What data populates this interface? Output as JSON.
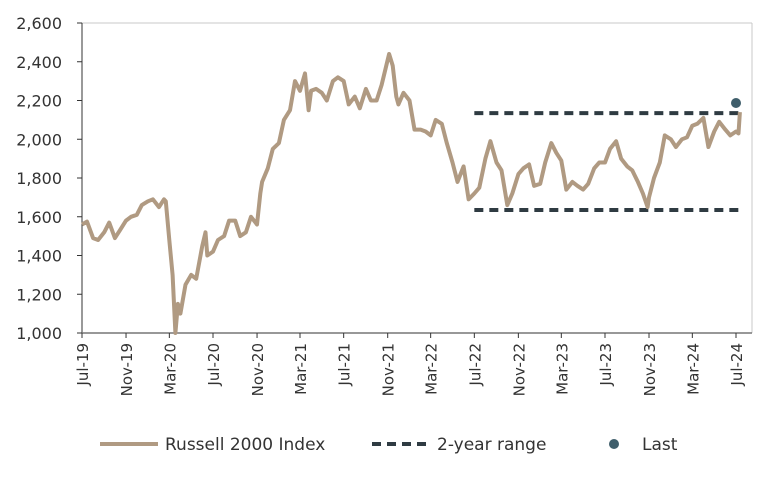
{
  "chart_data": {
    "type": "line",
    "title": "",
    "xlabel": "",
    "ylabel": "",
    "ylim": [
      1000,
      2600
    ],
    "xlim": [
      "2019-07-01",
      "2024-07-01"
    ],
    "yticks": [
      "1,000",
      "1,200",
      "1,400",
      "1,600",
      "1,800",
      "2,000",
      "2,200",
      "2,400",
      "2,600"
    ],
    "ytick_values": [
      1000,
      1200,
      1400,
      1600,
      1800,
      2000,
      2200,
      2400,
      2600
    ],
    "xticks": [
      "Jul-19",
      "Nov-19",
      "Mar-20",
      "Jul-20",
      "Nov-20",
      "Mar-21",
      "Jul-21",
      "Nov-21",
      "Mar-22",
      "Jul-22",
      "Nov-22",
      "Mar-23",
      "Jul-23",
      "Nov-23",
      "Mar-24",
      "Jul-24"
    ],
    "xtick_dates": [
      "2019-07-01",
      "2019-11-01",
      "2020-03-01",
      "2020-07-01",
      "2020-11-01",
      "2021-03-01",
      "2021-07-01",
      "2021-11-01",
      "2022-03-01",
      "2022-07-01",
      "2022-11-01",
      "2023-03-01",
      "2023-07-01",
      "2023-11-01",
      "2024-03-01",
      "2024-07-01"
    ],
    "grid": false,
    "legend_position": "bottom",
    "series": [
      {
        "name": "Russell 2000 Index",
        "color": "#b09a82",
        "points": [
          [
            "2019-07-01",
            1560
          ],
          [
            "2019-07-15",
            1575
          ],
          [
            "2019-08-01",
            1490
          ],
          [
            "2019-08-15",
            1480
          ],
          [
            "2019-09-01",
            1520
          ],
          [
            "2019-09-15",
            1570
          ],
          [
            "2019-10-01",
            1490
          ],
          [
            "2019-10-15",
            1530
          ],
          [
            "2019-11-01",
            1580
          ],
          [
            "2019-11-15",
            1600
          ],
          [
            "2019-12-01",
            1610
          ],
          [
            "2019-12-15",
            1660
          ],
          [
            "2020-01-01",
            1680
          ],
          [
            "2020-01-15",
            1690
          ],
          [
            "2020-02-01",
            1650
          ],
          [
            "2020-02-15",
            1690
          ],
          [
            "2020-02-20",
            1680
          ],
          [
            "2020-03-01",
            1480
          ],
          [
            "2020-03-10",
            1300
          ],
          [
            "2020-03-18",
            1000
          ],
          [
            "2020-03-25",
            1150
          ],
          [
            "2020-04-01",
            1100
          ],
          [
            "2020-04-15",
            1250
          ],
          [
            "2020-05-01",
            1300
          ],
          [
            "2020-05-15",
            1280
          ],
          [
            "2020-06-01",
            1450
          ],
          [
            "2020-06-10",
            1520
          ],
          [
            "2020-06-15",
            1400
          ],
          [
            "2020-07-01",
            1420
          ],
          [
            "2020-07-15",
            1480
          ],
          [
            "2020-08-01",
            1500
          ],
          [
            "2020-08-15",
            1580
          ],
          [
            "2020-09-01",
            1580
          ],
          [
            "2020-09-15",
            1500
          ],
          [
            "2020-10-01",
            1520
          ],
          [
            "2020-10-15",
            1600
          ],
          [
            "2020-11-01",
            1560
          ],
          [
            "2020-11-10",
            1720
          ],
          [
            "2020-11-15",
            1780
          ],
          [
            "2020-12-01",
            1850
          ],
          [
            "2020-12-15",
            1950
          ],
          [
            "2021-01-01",
            1980
          ],
          [
            "2021-01-15",
            2100
          ],
          [
            "2021-02-01",
            2150
          ],
          [
            "2021-02-15",
            2300
          ],
          [
            "2021-03-01",
            2250
          ],
          [
            "2021-03-15",
            2340
          ],
          [
            "2021-03-25",
            2150
          ],
          [
            "2021-04-01",
            2250
          ],
          [
            "2021-04-15",
            2260
          ],
          [
            "2021-05-01",
            2240
          ],
          [
            "2021-05-15",
            2200
          ],
          [
            "2021-06-01",
            2300
          ],
          [
            "2021-06-15",
            2320
          ],
          [
            "2021-07-01",
            2300
          ],
          [
            "2021-07-15",
            2180
          ],
          [
            "2021-08-01",
            2220
          ],
          [
            "2021-08-15",
            2160
          ],
          [
            "2021-09-01",
            2260
          ],
          [
            "2021-09-15",
            2200
          ],
          [
            "2021-10-01",
            2200
          ],
          [
            "2021-10-15",
            2280
          ],
          [
            "2021-11-05",
            2440
          ],
          [
            "2021-11-15",
            2380
          ],
          [
            "2021-11-25",
            2220
          ],
          [
            "2021-12-01",
            2180
          ],
          [
            "2021-12-15",
            2240
          ],
          [
            "2022-01-01",
            2200
          ],
          [
            "2022-01-15",
            2050
          ],
          [
            "2022-02-01",
            2050
          ],
          [
            "2022-02-15",
            2040
          ],
          [
            "2022-03-01",
            2020
          ],
          [
            "2022-03-15",
            2100
          ],
          [
            "2022-04-01",
            2080
          ],
          [
            "2022-04-15",
            1980
          ],
          [
            "2022-05-01",
            1880
          ],
          [
            "2022-05-15",
            1780
          ],
          [
            "2022-06-01",
            1860
          ],
          [
            "2022-06-15",
            1690
          ],
          [
            "2022-07-01",
            1720
          ],
          [
            "2022-07-15",
            1750
          ],
          [
            "2022-08-01",
            1900
          ],
          [
            "2022-08-15",
            1990
          ],
          [
            "2022-09-01",
            1880
          ],
          [
            "2022-09-15",
            1840
          ],
          [
            "2022-10-01",
            1660
          ],
          [
            "2022-10-15",
            1720
          ],
          [
            "2022-11-01",
            1820
          ],
          [
            "2022-11-15",
            1850
          ],
          [
            "2022-12-01",
            1870
          ],
          [
            "2022-12-15",
            1760
          ],
          [
            "2023-01-01",
            1770
          ],
          [
            "2023-01-15",
            1880
          ],
          [
            "2023-02-01",
            1980
          ],
          [
            "2023-02-15",
            1930
          ],
          [
            "2023-03-01",
            1890
          ],
          [
            "2023-03-15",
            1740
          ],
          [
            "2023-04-01",
            1780
          ],
          [
            "2023-04-15",
            1760
          ],
          [
            "2023-05-01",
            1740
          ],
          [
            "2023-05-15",
            1770
          ],
          [
            "2023-06-01",
            1850
          ],
          [
            "2023-06-15",
            1880
          ],
          [
            "2023-07-01",
            1880
          ],
          [
            "2023-07-15",
            1950
          ],
          [
            "2023-08-01",
            1990
          ],
          [
            "2023-08-15",
            1900
          ],
          [
            "2023-09-01",
            1860
          ],
          [
            "2023-09-15",
            1840
          ],
          [
            "2023-10-01",
            1780
          ],
          [
            "2023-10-15",
            1720
          ],
          [
            "2023-10-28",
            1650
          ],
          [
            "2023-11-01",
            1700
          ],
          [
            "2023-11-15",
            1800
          ],
          [
            "2023-12-01",
            1880
          ],
          [
            "2023-12-15",
            2020
          ],
          [
            "2024-01-01",
            2000
          ],
          [
            "2024-01-15",
            1960
          ],
          [
            "2024-02-01",
            2000
          ],
          [
            "2024-02-15",
            2010
          ],
          [
            "2024-03-01",
            2070
          ],
          [
            "2024-03-15",
            2080
          ],
          [
            "2024-04-01",
            2110
          ],
          [
            "2024-04-15",
            1960
          ],
          [
            "2024-05-01",
            2040
          ],
          [
            "2024-05-15",
            2090
          ],
          [
            "2024-06-01",
            2050
          ],
          [
            "2024-06-15",
            2020
          ],
          [
            "2024-07-01",
            2040
          ],
          [
            "2024-07-08",
            2030
          ],
          [
            "2024-07-12",
            2140
          ]
        ]
      },
      {
        "name": "2-year range",
        "color": "#2f3b42",
        "style": "dashed",
        "upper": 2135,
        "lower": 1635,
        "start": "2022-07-01",
        "end": "2024-07-15"
      },
      {
        "name": "Last",
        "color": "#3f5e6b",
        "style": "marker",
        "date": "2024-07-01",
        "value": 2187
      }
    ]
  }
}
